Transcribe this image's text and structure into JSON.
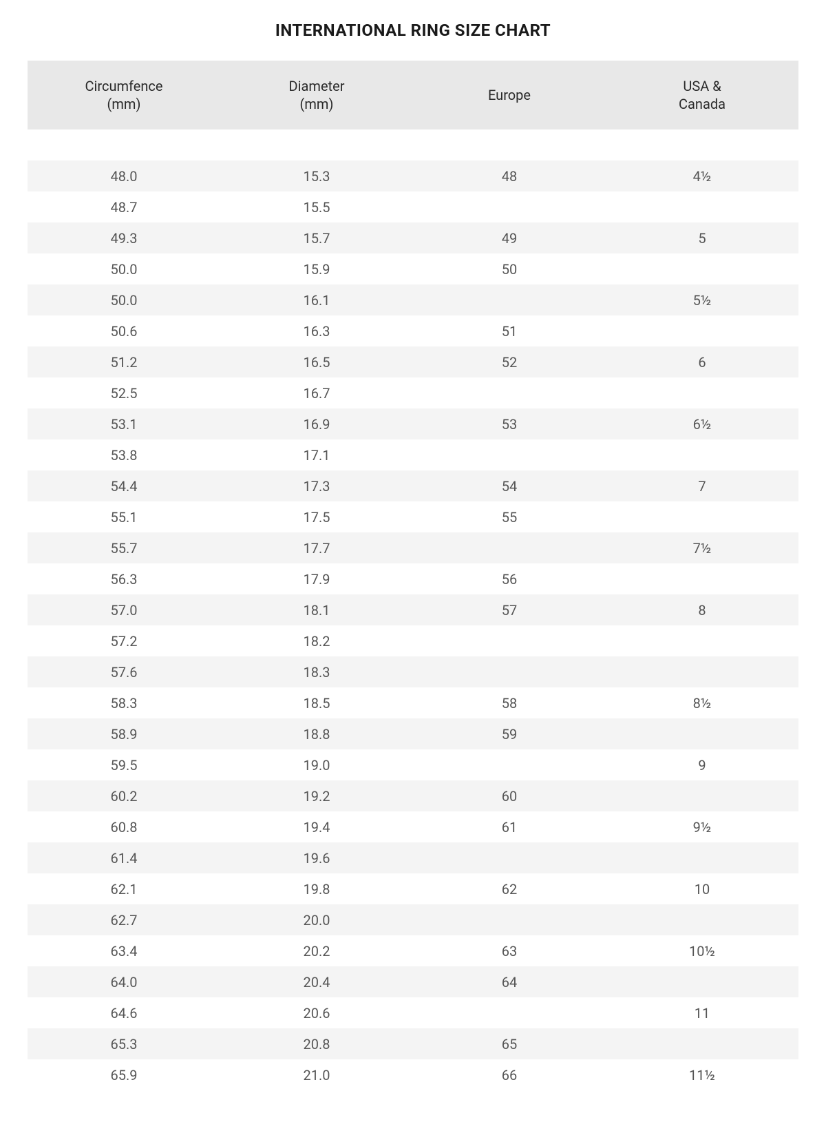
{
  "title": "INTERNATIONAL RING SIZE CHART",
  "table": {
    "columns": [
      "Circumfence (mm)",
      "Diameter (mm)",
      "Europe",
      "USA & Canada"
    ],
    "rows": [
      [
        "48.0",
        "15.3",
        "48",
        "4½"
      ],
      [
        "48.7",
        "15.5",
        "",
        ""
      ],
      [
        "49.3",
        "15.7",
        "49",
        "5"
      ],
      [
        "50.0",
        "15.9",
        "50",
        ""
      ],
      [
        "50.0",
        "16.1",
        "",
        "5½"
      ],
      [
        "50.6",
        "16.3",
        "51",
        ""
      ],
      [
        "51.2",
        "16.5",
        "52",
        "6"
      ],
      [
        "52.5",
        "16.7",
        "",
        ""
      ],
      [
        "53.1",
        "16.9",
        "53",
        "6½"
      ],
      [
        "53.8",
        "17.1",
        "",
        ""
      ],
      [
        "54.4",
        "17.3",
        "54",
        "7"
      ],
      [
        "55.1",
        "17.5",
        "55",
        ""
      ],
      [
        "55.7",
        "17.7",
        "",
        "7½"
      ],
      [
        "56.3",
        "17.9",
        "56",
        ""
      ],
      [
        "57.0",
        "18.1",
        "57",
        "8"
      ],
      [
        "57.2",
        "18.2",
        "",
        ""
      ],
      [
        "57.6",
        "18.3",
        "",
        ""
      ],
      [
        "58.3",
        "18.5",
        "58",
        "8½"
      ],
      [
        "58.9",
        "18.8",
        "59",
        ""
      ],
      [
        "59.5",
        "19.0",
        "",
        "9"
      ],
      [
        "60.2",
        "19.2",
        "60",
        ""
      ],
      [
        "60.8",
        "19.4",
        "61",
        "9½"
      ],
      [
        "61.4",
        "19.6",
        "",
        ""
      ],
      [
        "62.1",
        "19.8",
        "62",
        "10"
      ],
      [
        "62.7",
        "20.0",
        "",
        ""
      ],
      [
        "63.4",
        "20.2",
        "63",
        "10½"
      ],
      [
        "64.0",
        "20.4",
        "64",
        ""
      ],
      [
        "64.6",
        "20.6",
        "",
        "11"
      ],
      [
        "65.3",
        "20.8",
        "65",
        ""
      ],
      [
        "65.9",
        "21.0",
        "66",
        "11½"
      ]
    ],
    "styling": {
      "type": "table",
      "header_bg_color": "#e8e8e8",
      "row_odd_bg_color": "#ffffff",
      "row_even_bg_color": "#f4f4f4",
      "header_font_size": 20,
      "cell_font_size": 20,
      "header_text_color": "#2a2a2a",
      "cell_text_color": "#555555",
      "title_font_size": 24,
      "title_font_weight": 700,
      "title_color": "#1a1a1a",
      "column_widths_pct": [
        25,
        25,
        25,
        25
      ],
      "text_align": "center"
    }
  }
}
